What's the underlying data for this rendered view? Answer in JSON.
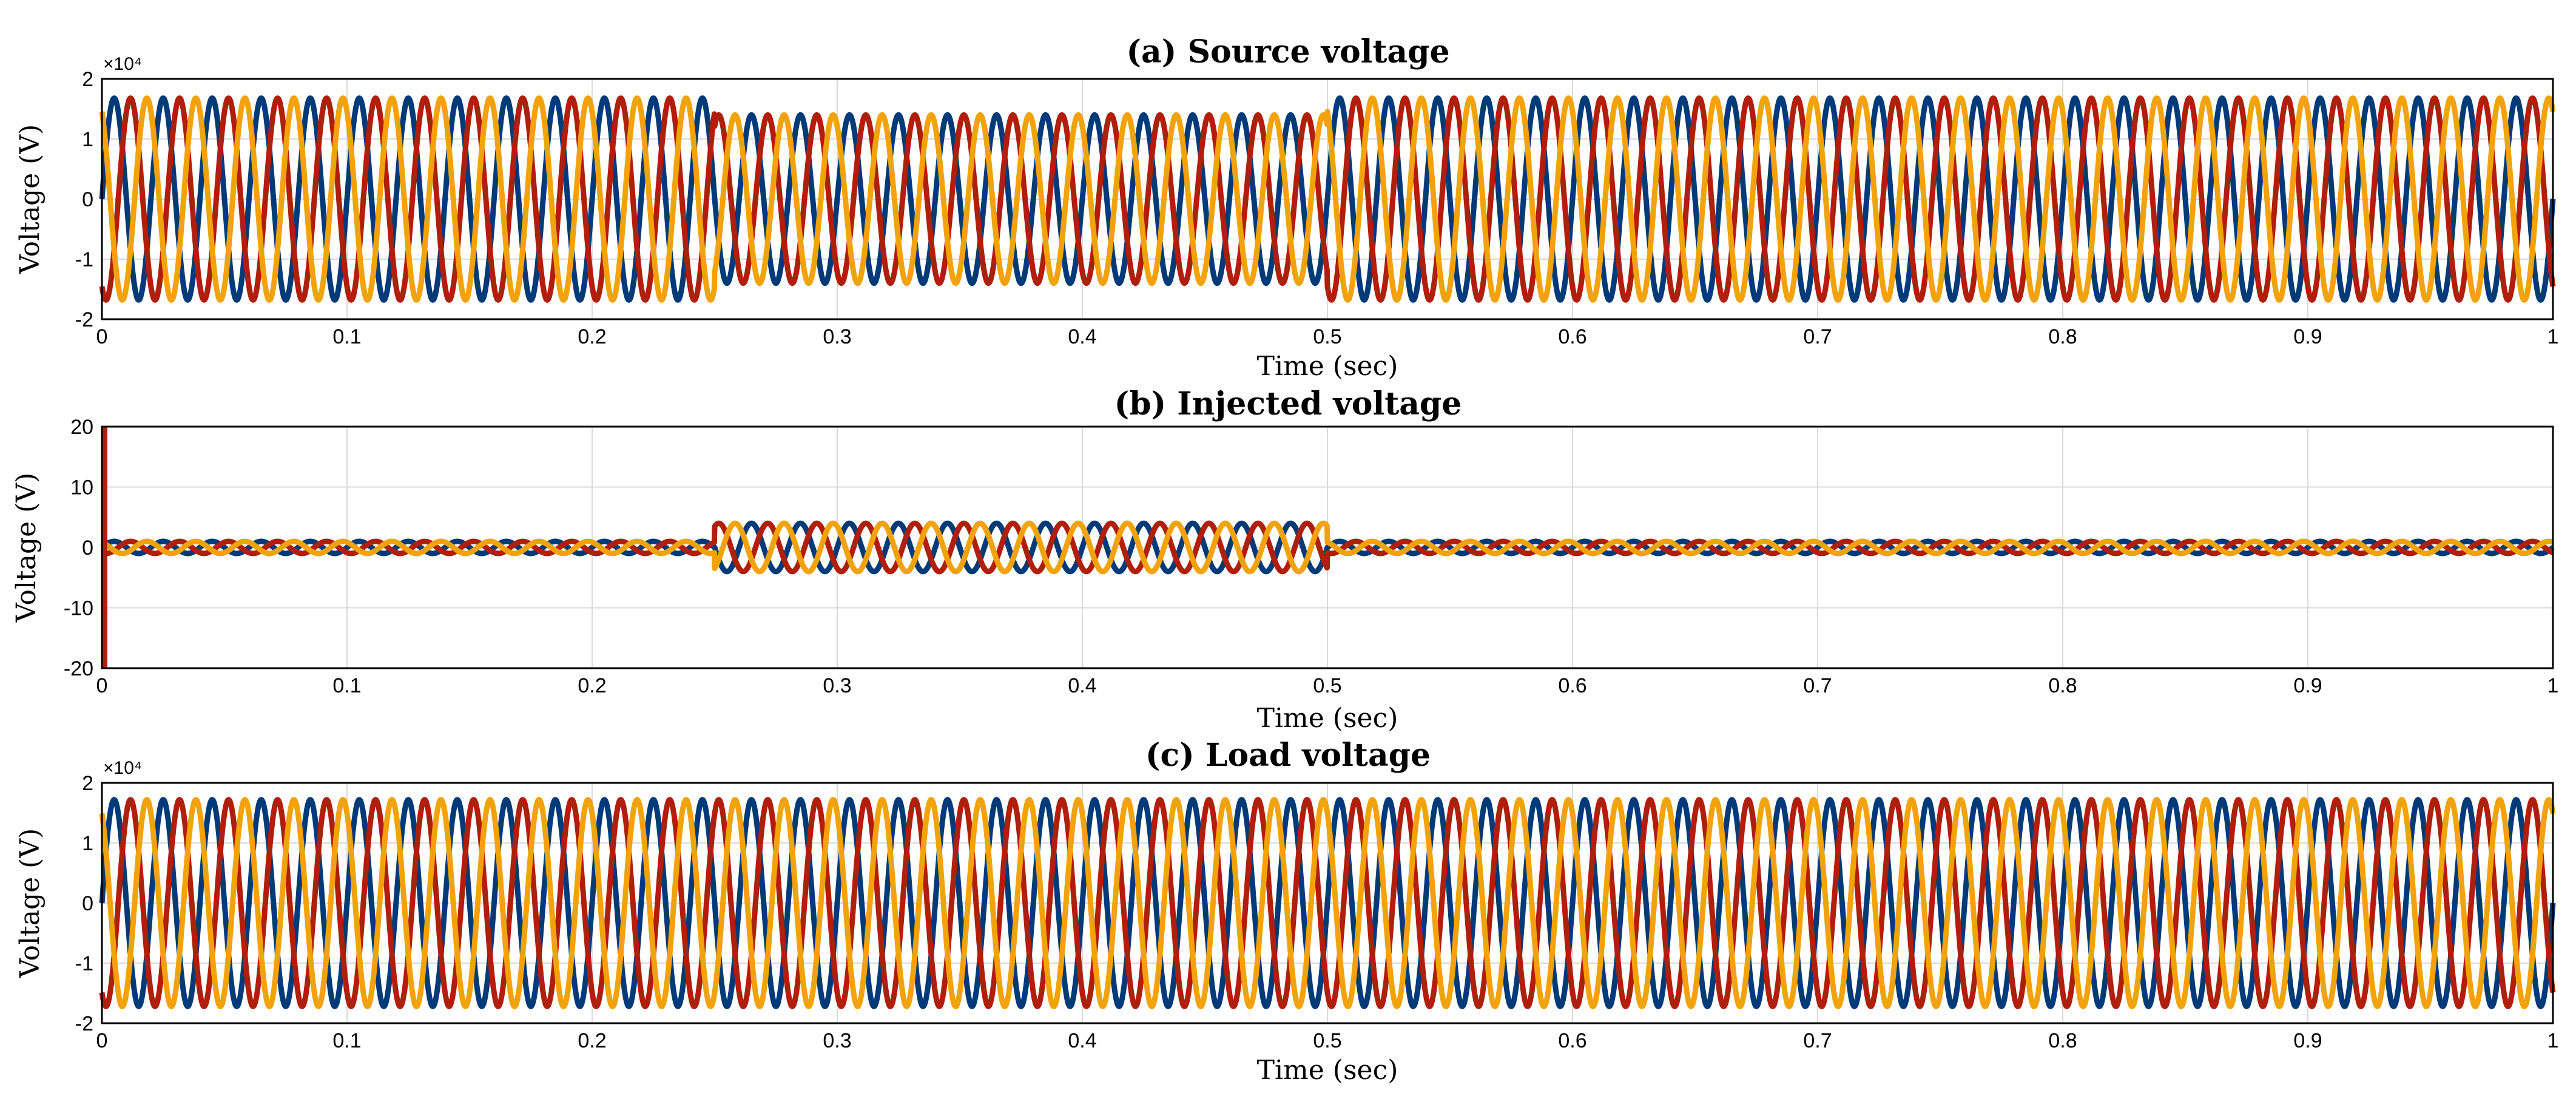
{
  "chart_data": [
    {
      "type": "line",
      "title": "(a) Source voltage",
      "xlabel": "Time (sec)",
      "ylabel": "Voltage (V)",
      "y_exponent": "×10⁴",
      "xlim": [
        0,
        1
      ],
      "ylim": [
        -2,
        2
      ],
      "xticks": [
        "0",
        "0.1",
        "0.2",
        "0.3",
        "0.4",
        "0.5",
        "0.6",
        "0.7",
        "0.8",
        "0.9",
        "1"
      ],
      "yticks": [
        "2",
        "1",
        "0",
        "-1",
        "-2"
      ],
      "grid": true,
      "frequency_hz": 50,
      "series": [
        {
          "color": "#003a78",
          "phase_deg": 0
        },
        {
          "color": "#b01e0c",
          "phase_deg": -120
        },
        {
          "color": "#f2a20a",
          "phase_deg": 120
        }
      ],
      "segments": [
        {
          "t_start": 0,
          "t_end": 0.25,
          "amplitude": 1.68
        },
        {
          "t_start": 0.25,
          "t_end": 0.5,
          "amplitude": 1.4
        },
        {
          "t_start": 0.5,
          "t_end": 1,
          "amplitude": 1.68
        }
      ]
    },
    {
      "type": "line",
      "title": "(b) Injected voltage",
      "xlabel": "Time (sec)",
      "ylabel": "Voltage (V)",
      "y_exponent": "",
      "xlim": [
        0,
        1
      ],
      "ylim": [
        -20,
        20
      ],
      "xticks": [
        "0",
        "0.1",
        "0.2",
        "0.3",
        "0.4",
        "0.5",
        "0.6",
        "0.7",
        "0.8",
        "0.9",
        "1"
      ],
      "yticks": [
        "20",
        "10",
        "0",
        "-10",
        "-20"
      ],
      "grid": true,
      "frequency_hz": 50,
      "series": [
        {
          "color": "#003a78",
          "phase_deg": 0
        },
        {
          "color": "#b01e0c",
          "phase_deg": -120
        },
        {
          "color": "#f2a20a",
          "phase_deg": 120
        }
      ],
      "segments": [
        {
          "t_start": 0,
          "t_end": 0.25,
          "amplitude": 1
        },
        {
          "t_start": 0.25,
          "t_end": 0.5,
          "amplitude": 4
        },
        {
          "t_start": 0.5,
          "t_end": 1,
          "amplitude": 1
        }
      ],
      "initial_spike": {
        "t": 0,
        "range": [
          -20,
          20
        ],
        "color": "#b01e0c"
      }
    },
    {
      "type": "line",
      "title": "(c) Load voltage",
      "xlabel": "Time (sec)",
      "ylabel": "Voltage (V)",
      "y_exponent": "×10⁴",
      "xlim": [
        0,
        1
      ],
      "ylim": [
        -2,
        2
      ],
      "xticks": [
        "0",
        "0.1",
        "0.2",
        "0.3",
        "0.4",
        "0.5",
        "0.6",
        "0.7",
        "0.8",
        "0.9",
        "1"
      ],
      "yticks": [
        "2",
        "1",
        "0",
        "-1",
        "-2"
      ],
      "grid": true,
      "frequency_hz": 50,
      "series": [
        {
          "color": "#003a78",
          "phase_deg": 0
        },
        {
          "color": "#b01e0c",
          "phase_deg": -120
        },
        {
          "color": "#f2a20a",
          "phase_deg": 120
        }
      ],
      "segments": [
        {
          "t_start": 0,
          "t_end": 1,
          "amplitude": 1.72
        }
      ]
    }
  ]
}
